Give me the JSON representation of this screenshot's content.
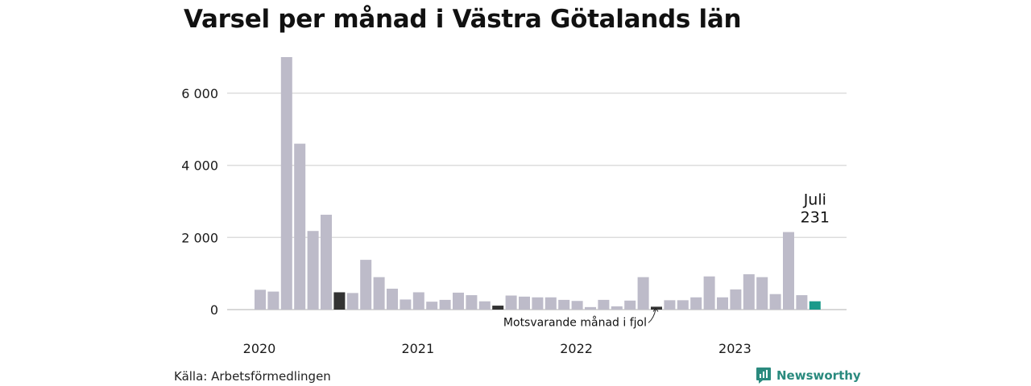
{
  "title": "Varsel per månad i Västra Götalands län",
  "source": "Källa: Arbetsförmedlingen",
  "brand": {
    "name": "Newsworthy",
    "icon": "newsworthy-logo-icon",
    "color": "#2a8a7e"
  },
  "colors": {
    "bar": "#bdbbc9",
    "highlight": "#333333",
    "current": "#1a9a8a",
    "grid": "#dddddd"
  },
  "chart_data": {
    "type": "bar",
    "title": "Varsel per månad i Västra Götalands län",
    "ylim": [
      0,
      7000
    ],
    "yticks": [
      0,
      2000,
      4000,
      6000
    ],
    "ytick_labels": [
      "0",
      "2 000",
      "4 000",
      "6 000"
    ],
    "grid": true,
    "xtick_labels": [
      {
        "label": "2020",
        "index": 0
      },
      {
        "label": "2021",
        "index": 12
      },
      {
        "label": "2022",
        "index": 24
      },
      {
        "label": "2023",
        "index": 36
      }
    ],
    "categories": [
      "2020-01",
      "2020-02",
      "2020-03",
      "2020-04",
      "2020-05",
      "2020-06",
      "2020-07",
      "2020-08",
      "2020-09",
      "2020-10",
      "2020-11",
      "2020-12",
      "2021-01",
      "2021-02",
      "2021-03",
      "2021-04",
      "2021-05",
      "2021-06",
      "2021-07",
      "2021-08",
      "2021-09",
      "2021-10",
      "2021-11",
      "2021-12",
      "2022-01",
      "2022-02",
      "2022-03",
      "2022-04",
      "2022-05",
      "2022-06",
      "2022-07",
      "2022-08",
      "2022-09",
      "2022-10",
      "2022-11",
      "2022-12",
      "2023-01",
      "2023-02",
      "2023-03",
      "2023-04",
      "2023-05",
      "2023-06",
      "2023-07"
    ],
    "values": [
      550,
      500,
      7000,
      4600,
      2180,
      2630,
      480,
      460,
      1380,
      900,
      580,
      280,
      480,
      220,
      270,
      470,
      400,
      230,
      110,
      390,
      360,
      340,
      340,
      270,
      240,
      70,
      270,
      90,
      250,
      900,
      80,
      260,
      260,
      340,
      920,
      340,
      560,
      980,
      900,
      430,
      2150,
      400,
      231
    ],
    "highlighted_indices": [
      6,
      18,
      30
    ],
    "current_index": 42,
    "annotations": {
      "last_month": "Juli",
      "last_value": "231",
      "previous_year": "Motsvarande månad i fjol"
    }
  }
}
